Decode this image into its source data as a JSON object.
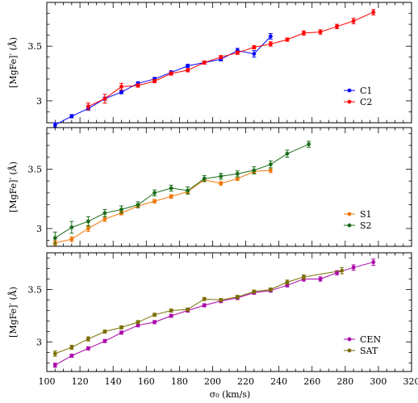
{
  "figure": {
    "xlabel": "σ₀ (km/s)",
    "xlim": [
      100,
      320
    ],
    "xticks": [
      100,
      120,
      140,
      160,
      180,
      200,
      220,
      240,
      260,
      280,
      300,
      320
    ]
  },
  "chart_data": [
    {
      "type": "line",
      "ylabel": "[MgFe]′ (Å)",
      "ylim": [
        2.8,
        3.9
      ],
      "yticks": [
        "3",
        "3.5"
      ],
      "grid": false,
      "legend_position": "bottom-right",
      "series": [
        {
          "name": "C1",
          "color": "#0000ff",
          "x": [
            105,
            115,
            125,
            135,
            145,
            155,
            165,
            175,
            185,
            195,
            205,
            215,
            225,
            235
          ],
          "y": [
            2.78,
            2.86,
            2.93,
            3.02,
            3.08,
            3.16,
            3.2,
            3.26,
            3.32,
            3.35,
            3.38,
            3.46,
            3.43,
            3.59
          ],
          "err": [
            0.02,
            0.015,
            0.015,
            0.015,
            0.015,
            0.015,
            0.015,
            0.015,
            0.015,
            0.015,
            0.015,
            0.02,
            0.03,
            0.025
          ]
        },
        {
          "name": "C2",
          "color": "#ff0000",
          "x": [
            125,
            135,
            145,
            155,
            165,
            175,
            185,
            195,
            205,
            215,
            225,
            235,
            245,
            255,
            265,
            275,
            285,
            297
          ],
          "y": [
            2.95,
            3.02,
            3.13,
            3.14,
            3.18,
            3.25,
            3.28,
            3.35,
            3.4,
            3.44,
            3.49,
            3.52,
            3.56,
            3.62,
            3.63,
            3.68,
            3.73,
            3.81
          ],
          "err": [
            0.03,
            0.04,
            0.03,
            0.015,
            0.015,
            0.015,
            0.015,
            0.015,
            0.015,
            0.015,
            0.015,
            0.02,
            0.015,
            0.02,
            0.02,
            0.02,
            0.025,
            0.025
          ]
        }
      ]
    },
    {
      "type": "line",
      "ylabel": "[MgFe]′ (Å)",
      "ylim": [
        2.85,
        3.85
      ],
      "yticks": [
        "3",
        "3.5"
      ],
      "grid": false,
      "legend_position": "bottom-right",
      "series": [
        {
          "name": "S1",
          "color": "#ee7700",
          "x": [
            105,
            115,
            125,
            135,
            145,
            155,
            165,
            175,
            185,
            195,
            205,
            215,
            225,
            235
          ],
          "y": [
            2.88,
            2.91,
            3.0,
            3.08,
            3.13,
            3.19,
            3.23,
            3.27,
            3.31,
            3.41,
            3.38,
            3.42,
            3.48,
            3.49
          ],
          "err": [
            0.02,
            0.02,
            0.025,
            0.02,
            0.015,
            0.015,
            0.015,
            0.015,
            0.015,
            0.015,
            0.015,
            0.015,
            0.015,
            0.02
          ]
        },
        {
          "name": "S2",
          "color": "#1a6e1a",
          "x": [
            105,
            115,
            125,
            135,
            145,
            155,
            165,
            175,
            185,
            195,
            205,
            215,
            225,
            235,
            245,
            258
          ],
          "y": [
            2.92,
            3.01,
            3.06,
            3.13,
            3.16,
            3.2,
            3.3,
            3.34,
            3.32,
            3.42,
            3.44,
            3.46,
            3.49,
            3.54,
            3.63,
            3.71
          ],
          "err": [
            0.05,
            0.05,
            0.04,
            0.03,
            0.03,
            0.025,
            0.025,
            0.025,
            0.03,
            0.025,
            0.025,
            0.025,
            0.03,
            0.03,
            0.03,
            0.025
          ]
        }
      ]
    },
    {
      "type": "line",
      "ylabel": "[MgFe]′ (Å)",
      "ylim": [
        2.72,
        3.85
      ],
      "yticks": [
        "3",
        "3.5"
      ],
      "grid": false,
      "legend_position": "bottom-right",
      "series": [
        {
          "name": "CEN",
          "color": "#aa00aa",
          "x": [
            105,
            115,
            125,
            135,
            145,
            155,
            165,
            175,
            185,
            195,
            205,
            215,
            225,
            235,
            245,
            255,
            265,
            275,
            285,
            297
          ],
          "y": [
            2.78,
            2.87,
            2.94,
            3.01,
            3.09,
            3.16,
            3.19,
            3.25,
            3.3,
            3.35,
            3.39,
            3.42,
            3.47,
            3.49,
            3.54,
            3.6,
            3.6,
            3.66,
            3.71,
            3.76
          ],
          "err": [
            0.02,
            0.015,
            0.015,
            0.015,
            0.015,
            0.015,
            0.015,
            0.015,
            0.015,
            0.015,
            0.015,
            0.015,
            0.015,
            0.015,
            0.015,
            0.02,
            0.02,
            0.02,
            0.025,
            0.03
          ]
        },
        {
          "name": "SAT",
          "color": "#7a6e00",
          "x": [
            105,
            115,
            125,
            135,
            145,
            155,
            165,
            175,
            185,
            195,
            205,
            215,
            225,
            235,
            245,
            255,
            278
          ],
          "y": [
            2.89,
            2.95,
            3.03,
            3.1,
            3.14,
            3.19,
            3.26,
            3.3,
            3.31,
            3.41,
            3.4,
            3.43,
            3.48,
            3.5,
            3.57,
            3.62,
            3.68
          ],
          "err": [
            0.025,
            0.02,
            0.02,
            0.015,
            0.015,
            0.015,
            0.015,
            0.015,
            0.015,
            0.015,
            0.015,
            0.015,
            0.015,
            0.015,
            0.02,
            0.02,
            0.03
          ]
        }
      ]
    }
  ]
}
